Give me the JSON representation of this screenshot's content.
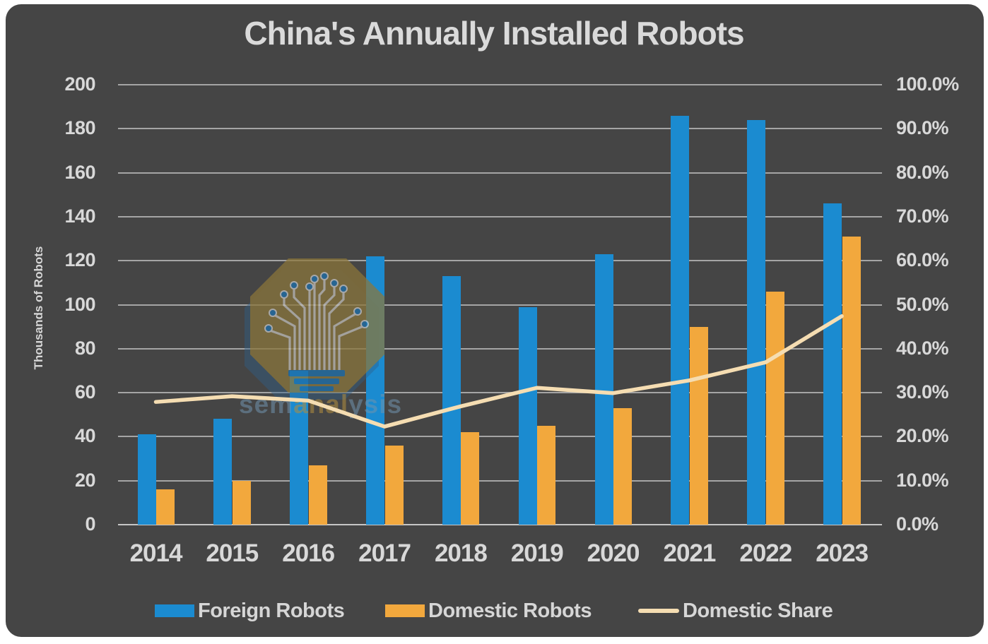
{
  "title": "China's Annually Installed Robots",
  "watermark": {
    "logo": "semianalysis-circuit-tree-badge",
    "text_prefix": "sem",
    "text_mid": "anal",
    "text_suffix": "ysis"
  },
  "legend": [
    {
      "label": "Foreign Robots",
      "swatch": "bar",
      "color": "#1b8bd0"
    },
    {
      "label": "Domestic Robots",
      "swatch": "bar",
      "color": "#f2a83d"
    },
    {
      "label": "Domestic Share",
      "swatch": "line",
      "color": "#f5ddb2"
    }
  ],
  "colors": {
    "background": "#454545",
    "foreign_bar": "#1b8bd0",
    "domestic_bar": "#f2a83d",
    "share_line": "#f5ddb2",
    "text": "#d8d8d8",
    "gridline": "#aeaeae"
  },
  "chart_data": {
    "type": "bar",
    "subtype": "grouped-bars-with-secondary-axis-line",
    "title": "China's Annually Installed Robots",
    "categories": [
      "2014",
      "2015",
      "2016",
      "2017",
      "2018",
      "2019",
      "2020",
      "2021",
      "2022",
      "2023"
    ],
    "series": [
      {
        "name": "Foreign Robots",
        "type": "bar",
        "axis": "left",
        "color": "#1b8bd0",
        "values": [
          41,
          48,
          70,
          122,
          113,
          99,
          123,
          186,
          184,
          146
        ]
      },
      {
        "name": "Domestic Robots",
        "type": "bar",
        "axis": "left",
        "color": "#f2a83d",
        "values": [
          16,
          20,
          27,
          36,
          42,
          45,
          53,
          90,
          106,
          131
        ]
      },
      {
        "name": "Domestic Share",
        "type": "line",
        "axis": "right",
        "color": "#f5ddb2",
        "values": [
          27.9,
          29.2,
          28.2,
          22.3,
          26.9,
          31.1,
          29.9,
          32.8,
          36.9,
          47.4
        ]
      }
    ],
    "left_axis": {
      "label": "Thousands of Robots",
      "min": 0,
      "max": 200,
      "step": 20,
      "ticks": [
        "0",
        "20",
        "40",
        "60",
        "80",
        "100",
        "120",
        "140",
        "160",
        "180",
        "200"
      ]
    },
    "right_axis": {
      "label": "",
      "min": 0,
      "max": 100,
      "step": 10,
      "unit": "%",
      "ticks": [
        "0.0%",
        "10.0%",
        "20.0%",
        "30.0%",
        "40.0%",
        "50.0%",
        "60.0%",
        "70.0%",
        "80.0%",
        "90.0%",
        "100.0%"
      ]
    },
    "grid": true,
    "legend_position": "bottom"
  }
}
